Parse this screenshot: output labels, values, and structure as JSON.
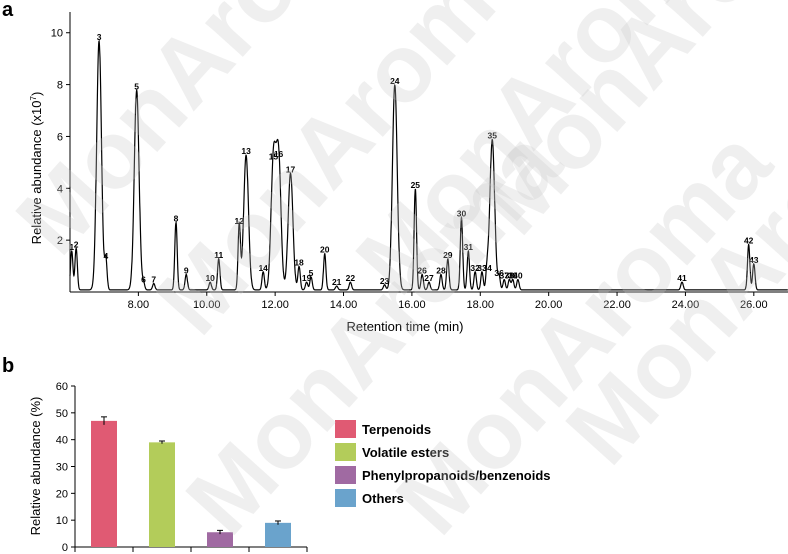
{
  "watermark": "MonAroma",
  "chart_data": [
    {
      "panel": "a",
      "type": "line",
      "xlabel": "Retention time (min)",
      "ylabel": "Relative abundance (x10",
      "ylabel_exp": "7",
      "ylabel_close": ")",
      "xlim": [
        6.0,
        27.0
      ],
      "ylim": [
        0,
        10.8
      ],
      "x_ticks": [
        "8.00",
        "10.00",
        "12.00",
        "14.00",
        "16.00",
        "18.00",
        "20.00",
        "22.00",
        "24.00",
        "26.00"
      ],
      "x_tick_values": [
        8,
        10,
        12,
        14,
        16,
        18,
        20,
        22,
        24,
        26
      ],
      "y_ticks": [
        "2",
        "4",
        "6",
        "8",
        "10"
      ],
      "y_tick_values": [
        2,
        4,
        6,
        8,
        10
      ],
      "peaks": [
        {
          "label": "1",
          "x": 6.05,
          "y": 1.5
        },
        {
          "label": "2",
          "x": 6.18,
          "y": 1.6
        },
        {
          "label": "3",
          "x": 6.85,
          "y": 9.6
        },
        {
          "label": "4",
          "x": 7.05,
          "y": 1.15
        },
        {
          "label": "5",
          "x": 7.95,
          "y": 7.7
        },
        {
          "label": "6",
          "x": 8.15,
          "y": 0.25
        },
        {
          "label": "7",
          "x": 8.45,
          "y": 0.25
        },
        {
          "label": "8",
          "x": 9.1,
          "y": 2.6
        },
        {
          "label": "9",
          "x": 9.4,
          "y": 0.6
        },
        {
          "label": "10",
          "x": 10.1,
          "y": 0.3
        },
        {
          "label": "11",
          "x": 10.35,
          "y": 1.2
        },
        {
          "label": "12",
          "x": 10.95,
          "y": 2.5
        },
        {
          "label": "13",
          "x": 11.15,
          "y": 5.2
        },
        {
          "label": "14",
          "x": 11.65,
          "y": 0.7
        },
        {
          "label": "15",
          "x": 11.95,
          "y": 5.0
        },
        {
          "label": "16",
          "x": 12.1,
          "y": 5.1
        },
        {
          "label": "17",
          "x": 12.45,
          "y": 4.5
        },
        {
          "label": "18",
          "x": 12.7,
          "y": 0.9
        },
        {
          "label": "19",
          "x": 12.92,
          "y": 0.3
        },
        {
          "label": "5",
          "x": 13.05,
          "y": 0.5
        },
        {
          "label": "20",
          "x": 13.45,
          "y": 1.4
        },
        {
          "label": "21",
          "x": 13.8,
          "y": 0.15
        },
        {
          "label": "22",
          "x": 14.2,
          "y": 0.3
        },
        {
          "label": "23",
          "x": 15.2,
          "y": 0.2
        },
        {
          "label": "24",
          "x": 15.5,
          "y": 7.9
        },
        {
          "label": "25",
          "x": 16.1,
          "y": 3.9
        },
        {
          "label": "26",
          "x": 16.3,
          "y": 0.6
        },
        {
          "label": "27",
          "x": 16.5,
          "y": 0.3
        },
        {
          "label": "28",
          "x": 16.85,
          "y": 0.6
        },
        {
          "label": "29",
          "x": 17.05,
          "y": 1.2
        },
        {
          "label": "30",
          "x": 17.45,
          "y": 2.8
        },
        {
          "label": "31",
          "x": 17.65,
          "y": 1.5
        },
        {
          "label": "32",
          "x": 17.85,
          "y": 0.7
        },
        {
          "label": "33",
          "x": 18.05,
          "y": 0.7
        },
        {
          "label": "34",
          "x": 18.2,
          "y": 0.7
        },
        {
          "label": "35",
          "x": 18.35,
          "y": 5.8
        },
        {
          "label": "36",
          "x": 18.55,
          "y": 0.5
        },
        {
          "label": "37",
          "x": 18.7,
          "y": 0.4
        },
        {
          "label": "38",
          "x": 18.85,
          "y": 0.4
        },
        {
          "label": "39",
          "x": 18.95,
          "y": 0.4
        },
        {
          "label": "40",
          "x": 19.1,
          "y": 0.4
        },
        {
          "label": "41",
          "x": 23.9,
          "y": 0.3
        },
        {
          "label": "42",
          "x": 25.85,
          "y": 1.75
        },
        {
          "label": "43",
          "x": 26.0,
          "y": 1.0
        }
      ]
    },
    {
      "panel": "b",
      "type": "bar",
      "ylabel": "Relative abundance (%)",
      "ylim": [
        0,
        60
      ],
      "y_ticks": [
        "0",
        "10",
        "20",
        "30",
        "40",
        "50",
        "60"
      ],
      "y_tick_values": [
        0,
        10,
        20,
        30,
        40,
        50,
        60
      ],
      "categories": [
        "Terpenoids",
        "Volatile esters",
        "Phenylpropanoids/benzenoids",
        "Others"
      ],
      "values": [
        47.0,
        39.0,
        5.5,
        9.0
      ],
      "errors": [
        1.5,
        0.5,
        0.7,
        0.7
      ],
      "colors": [
        "#e05a73",
        "#b3cc5a",
        "#a06aa2",
        "#6aa3cc"
      ],
      "legend": [
        "Terpenoids",
        "Volatile esters",
        "Phenylpropanoids/benzenoids",
        "Others"
      ]
    }
  ]
}
